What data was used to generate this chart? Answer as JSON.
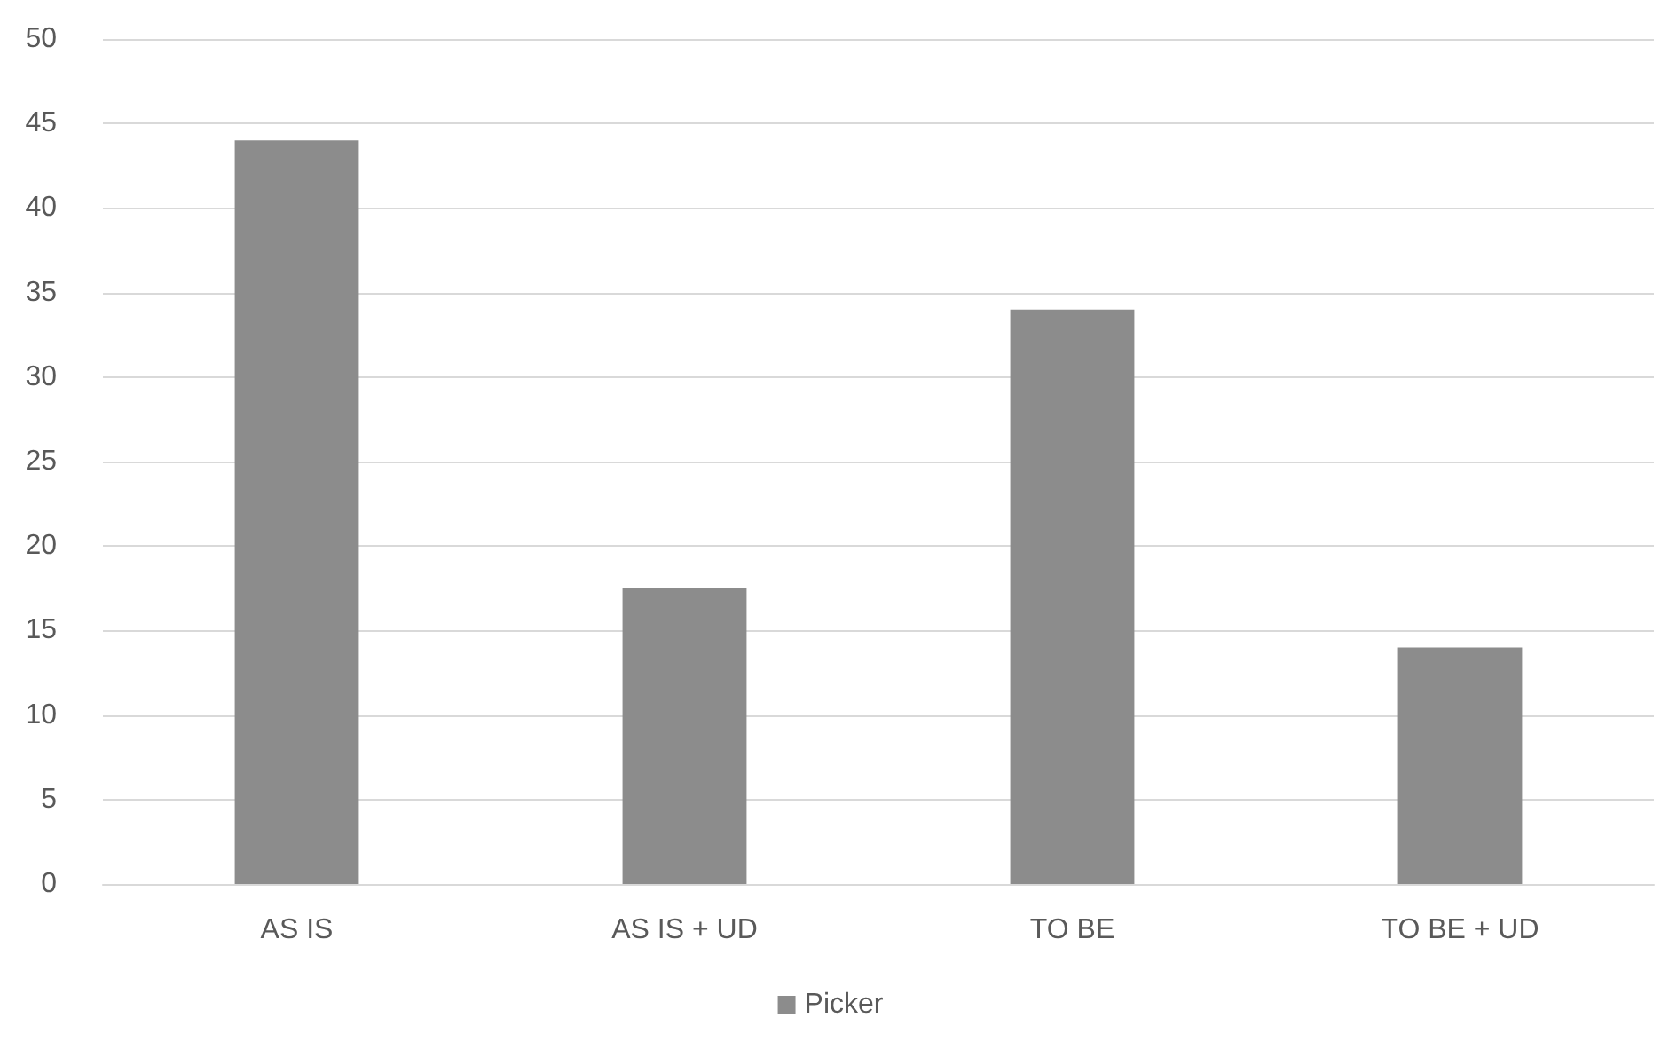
{
  "chart_data": {
    "type": "bar",
    "categories": [
      "AS IS",
      "AS IS + UD",
      "TO BE",
      "TO BE + UD"
    ],
    "series": [
      {
        "name": "Picker",
        "color": "#8c8c8c",
        "values": [
          44,
          17.5,
          34,
          14
        ]
      }
    ],
    "ylim": [
      0,
      50
    ],
    "yticks": [
      0,
      5,
      10,
      15,
      20,
      25,
      30,
      35,
      40,
      45,
      50
    ],
    "grid": "y",
    "legend": "bottom"
  }
}
